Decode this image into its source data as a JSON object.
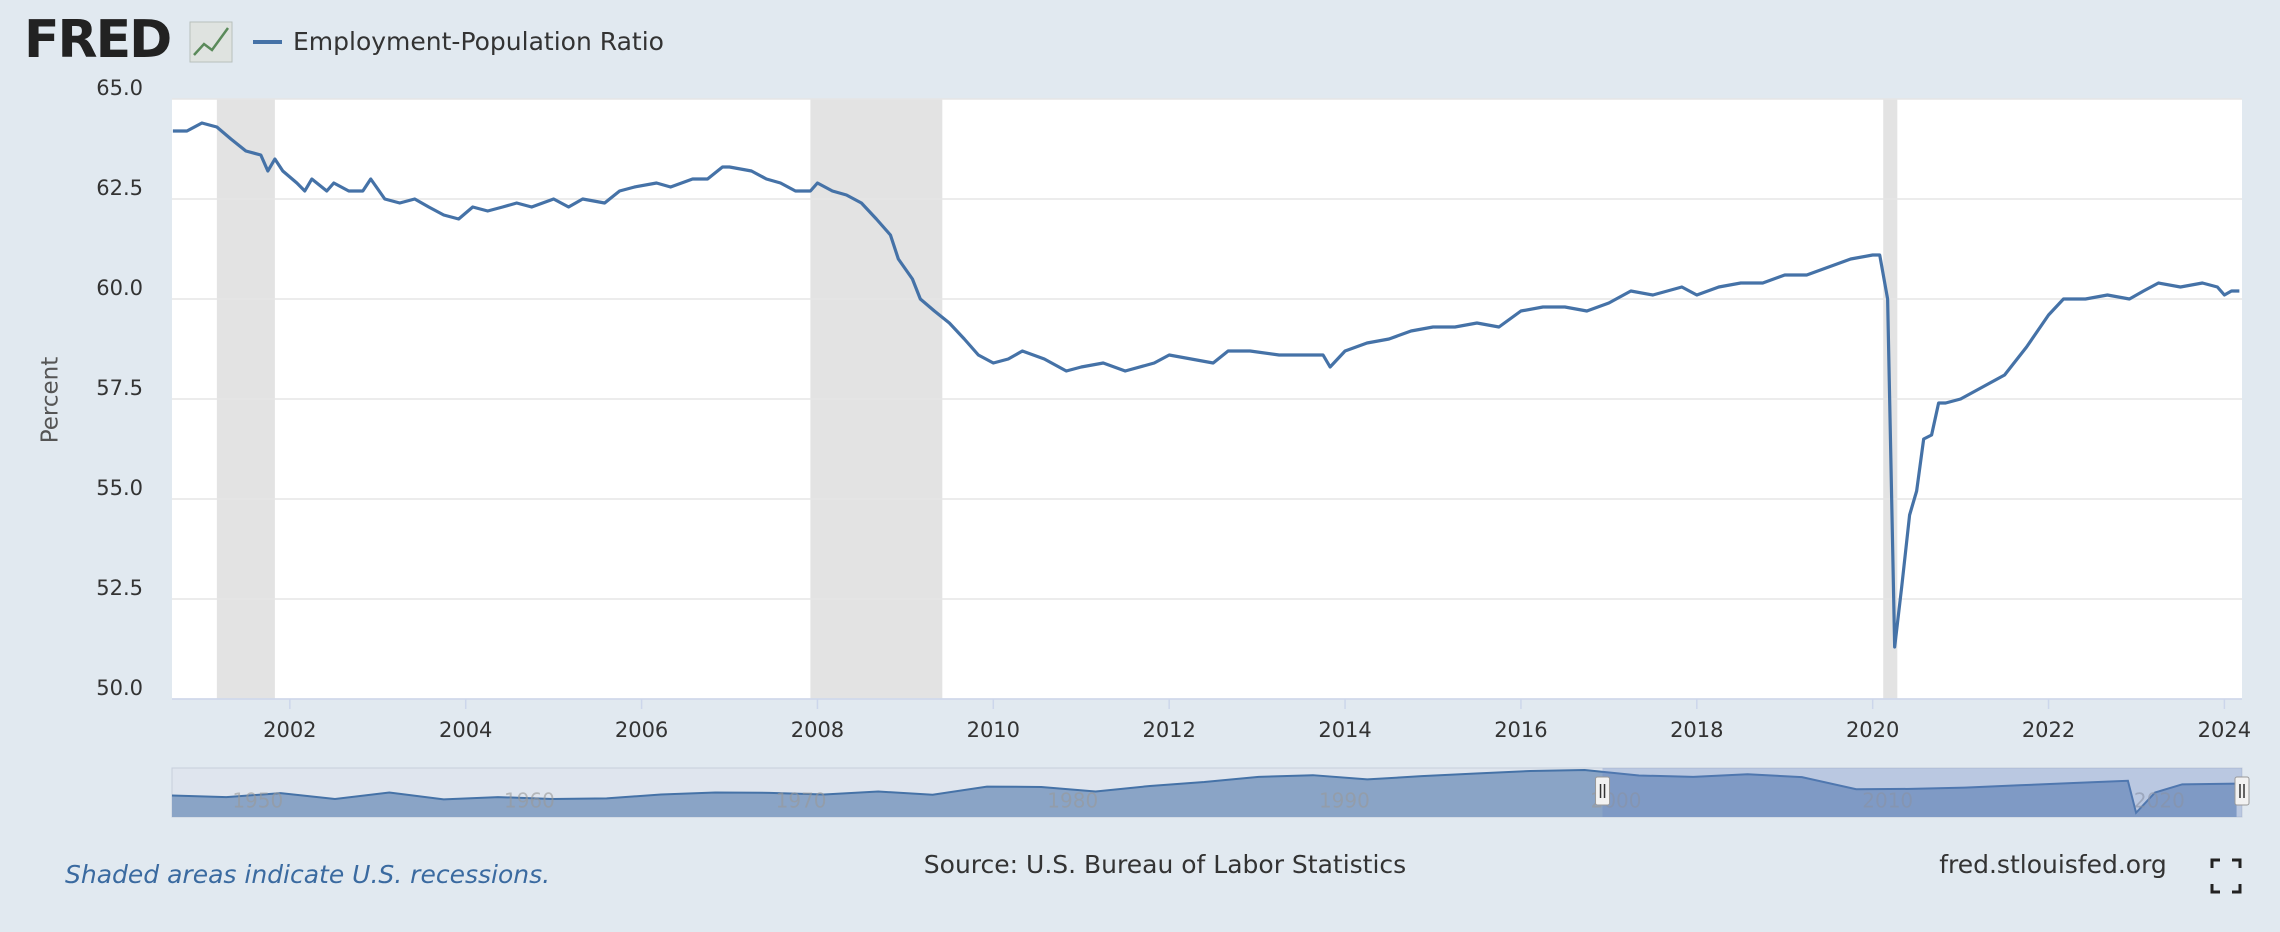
{
  "chart_data": {
    "type": "line",
    "logo": "FRED",
    "ylabel": "Percent",
    "note": "Shaded areas indicate U.S. recessions.",
    "source": "Source: U.S. Bureau of Labor Statistics",
    "site": "fred.stlouisfed.org",
    "xlim": [
      2000.66,
      2024.2
    ],
    "xticks": [
      2002,
      2004,
      2006,
      2008,
      2010,
      2012,
      2014,
      2016,
      2018,
      2020,
      2022,
      2024
    ],
    "ylim": [
      50,
      65
    ],
    "yticks": [
      {
        "value": 50,
        "label": "50.0"
      },
      {
        "value": 52.5,
        "label": "52.5"
      },
      {
        "value": 55,
        "label": "55.0"
      },
      {
        "value": 57.5,
        "label": "57.5"
      },
      {
        "value": 60,
        "label": "60.0"
      },
      {
        "value": 62.5,
        "label": "62.5"
      },
      {
        "value": 65,
        "label": "65.0"
      }
    ],
    "grid": true,
    "recessions": [
      [
        2001.17,
        2001.83
      ],
      [
        2007.92,
        2009.42
      ],
      [
        2020.12,
        2020.28
      ]
    ],
    "series": [
      {
        "name": "Employment-Population Ratio",
        "color": "#4572a7",
        "x": [
          2000.67,
          2000.83,
          2001.0,
          2001.17,
          2001.33,
          2001.5,
          2001.67,
          2001.75,
          2001.83,
          2001.92,
          2002.08,
          2002.17,
          2002.25,
          2002.42,
          2002.5,
          2002.67,
          2002.83,
          2002.92,
          2003.08,
          2003.25,
          2003.42,
          2003.58,
          2003.75,
          2003.92,
          2004.08,
          2004.25,
          2004.42,
          2004.58,
          2004.75,
          2005.0,
          2005.17,
          2005.33,
          2005.58,
          2005.75,
          2005.92,
          2006.17,
          2006.33,
          2006.58,
          2006.75,
          2006.92,
          2007.0,
          2007.25,
          2007.42,
          2007.58,
          2007.75,
          2007.92,
          2008.0,
          2008.17,
          2008.33,
          2008.5,
          2008.67,
          2008.83,
          2008.92,
          2009.08,
          2009.17,
          2009.33,
          2009.5,
          2009.67,
          2009.83,
          2010.0,
          2010.17,
          2010.33,
          2010.58,
          2010.83,
          2011.0,
          2011.25,
          2011.5,
          2011.83,
          2012.0,
          2012.25,
          2012.5,
          2012.67,
          2012.92,
          2013.25,
          2013.5,
          2013.75,
          2013.83,
          2014.0,
          2014.25,
          2014.5,
          2014.75,
          2015.0,
          2015.25,
          2015.5,
          2015.75,
          2016.0,
          2016.25,
          2016.5,
          2016.75,
          2017.0,
          2017.25,
          2017.5,
          2017.83,
          2018.0,
          2018.25,
          2018.5,
          2018.75,
          2019.0,
          2019.25,
          2019.5,
          2019.75,
          2020.0,
          2020.08,
          2020.17,
          2020.25,
          2020.33,
          2020.42,
          2020.5,
          2020.58,
          2020.67,
          2020.75,
          2020.83,
          2021.0,
          2021.25,
          2021.5,
          2021.75,
          2022.0,
          2022.17,
          2022.42,
          2022.67,
          2022.92,
          2023.08,
          2023.25,
          2023.5,
          2023.75,
          2023.92,
          2024.0,
          2024.08,
          2024.17
        ],
        "values": [
          64.2,
          64.2,
          64.4,
          64.3,
          64.0,
          63.7,
          63.6,
          63.2,
          63.5,
          63.2,
          62.9,
          62.7,
          63.0,
          62.7,
          62.9,
          62.7,
          62.7,
          63.0,
          62.5,
          62.4,
          62.5,
          62.3,
          62.1,
          62.0,
          62.3,
          62.2,
          62.3,
          62.4,
          62.3,
          62.5,
          62.3,
          62.5,
          62.4,
          62.7,
          62.8,
          62.9,
          62.8,
          63.0,
          63.0,
          63.3,
          63.3,
          63.2,
          63.0,
          62.9,
          62.7,
          62.7,
          62.9,
          62.7,
          62.6,
          62.4,
          62.0,
          61.6,
          61.0,
          60.5,
          60.0,
          59.7,
          59.4,
          59.0,
          58.6,
          58.4,
          58.5,
          58.7,
          58.5,
          58.2,
          58.3,
          58.4,
          58.2,
          58.4,
          58.6,
          58.5,
          58.4,
          58.7,
          58.7,
          58.6,
          58.6,
          58.6,
          58.3,
          58.7,
          58.9,
          59.0,
          59.2,
          59.3,
          59.3,
          59.4,
          59.3,
          59.7,
          59.8,
          59.8,
          59.7,
          59.9,
          60.2,
          60.1,
          60.3,
          60.1,
          60.3,
          60.4,
          60.4,
          60.6,
          60.6,
          60.8,
          61.0,
          61.1,
          61.1,
          60.0,
          51.3,
          52.8,
          54.6,
          55.2,
          56.5,
          56.6,
          57.4,
          57.4,
          57.5,
          57.8,
          58.1,
          58.8,
          59.6,
          60.0,
          60.0,
          60.1,
          60.0,
          60.2,
          60.4,
          60.3,
          60.4,
          60.3,
          60.1,
          60.2,
          60.2
        ]
      }
    ],
    "navigator": {
      "xlim": [
        1948,
        2024.2
      ],
      "xticks": [
        1950,
        1960,
        1970,
        1980,
        1990,
        2000,
        2010,
        2020
      ],
      "x": [
        1948,
        1950,
        1952,
        1954,
        1956,
        1958,
        1960,
        1962,
        1964,
        1966,
        1968,
        1970,
        1972,
        1974,
        1976,
        1978,
        1980,
        1982,
        1984,
        1986,
        1988,
        1990,
        1992,
        1994,
        1996,
        1998,
        2000,
        2002,
        2004,
        2006,
        2008,
        2010,
        2012,
        2014,
        2016,
        2018,
        2020.0,
        2020.3,
        2021,
        2022,
        2024
      ],
      "values": [
        56.6,
        56.1,
        57.3,
        55.5,
        57.5,
        55.4,
        56.1,
        55.5,
        55.7,
        56.9,
        57.5,
        57.4,
        56.9,
        57.8,
        56.8,
        59.3,
        59.2,
        57.8,
        59.5,
        60.7,
        62.3,
        62.8,
        61.5,
        62.5,
        63.3,
        64.1,
        64.4,
        62.7,
        62.3,
        63.1,
        62.2,
        58.5,
        58.6,
        59.0,
        59.7,
        60.4,
        61.1,
        51.3,
        57.5,
        60.0,
        60.2
      ]
    }
  }
}
